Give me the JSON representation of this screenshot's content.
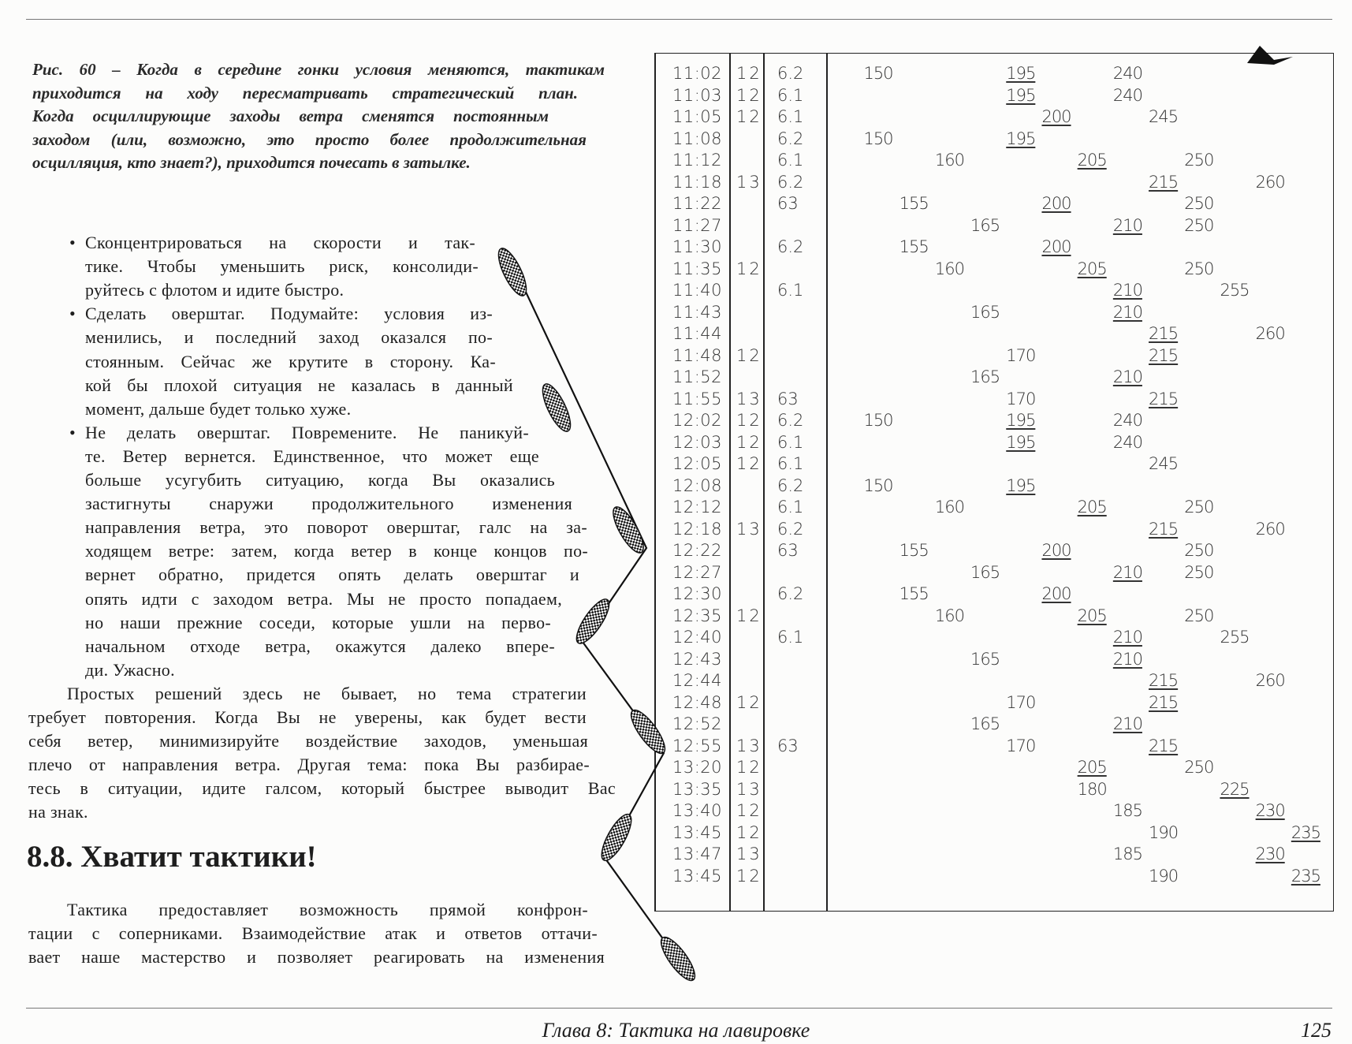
{
  "caption": {
    "lines": [
      "Рис. 60 – Когда в середине гонки условия меняются, тактикам",
      "приходится на ходу пересматривать стратегический план.",
      "Когда осциллирующие заходы ветра сменятся постоянным",
      "заходом (или, возможно, это просто более продолжительная",
      "осцилляция, кто знает?), приходится почесать в затылке."
    ]
  },
  "bullets": [
    {
      "lines": [
        "Сконцентрироваться на скорости и так-",
        "тике. Чтобы уменьшить риск, консолиди-",
        "руйтесь с флотом и идите быстро."
      ]
    },
    {
      "lines": [
        "Сделать оверштаг. Подумайте: условия из-",
        "менились, и последний заход оказался по-",
        "стоянным. Сейчас же крутите в сторону. Ка-",
        "кой бы плохой ситуация не казалась в данный",
        "момент, дальше будет только хуже."
      ]
    },
    {
      "lines": [
        "Не делать оверштаг. Повремените. Не паникуй-",
        "те. Ветер вернется. Единственное, что может еще",
        "больше усугубить ситуацию, когда Вы оказались",
        "застигнуты снаружи продолжительного изменения",
        "направления ветра, это поворот оверштаг, галс на за-",
        "ходящем ветре: затем, когда ветер в конце концов по-",
        "вернет обратно, придется опять делать оверштаг и",
        "опять идти с заходом ветра. Мы не просто попадаем,",
        "но наши прежние соседи, которые ушли на перво-",
        "начальном отходе ветра, окажутся далеко впере-",
        "ди. Ужасно."
      ]
    }
  ],
  "paragraph1": {
    "lines": [
      "Простых решений здесь не бывает, но тема стратегии",
      "требует повторения. Когда Вы не уверены, как будет вести",
      "себя ветер, минимизируйте воздействие заходов, уменьшая",
      "плечо от направления ветра. Другая тема: пока Вы разбирае-",
      "тесь в ситуации, идите галсом, который быстрее выводит Вас",
      "на знак."
    ]
  },
  "heading": "8.8. Хватит тактики!",
  "paragraph2": {
    "lines": [
      "Тактика предоставляет возможность прямой конфрон-",
      "тации с соперниками. Взаимодействие атак и ответов оттачи-",
      "вает наше мастерство и позволяет реагировать на изменения"
    ]
  },
  "table": {
    "rows": [
      {
        "time": "11:02",
        "wind": "12",
        "speed": "6.2",
        "headings": [
          150,
          195,
          240
        ]
      },
      {
        "time": "11:03",
        "wind": "12",
        "speed": "6.1",
        "headings": [
          195,
          240
        ]
      },
      {
        "time": "11:05",
        "wind": "12",
        "speed": "6.1",
        "headings": [
          200,
          245
        ]
      },
      {
        "time": "11:08",
        "wind": "",
        "speed": "6.2",
        "headings": [
          150,
          195
        ]
      },
      {
        "time": "11:12",
        "wind": "",
        "speed": "6.1",
        "headings": [
          160,
          205,
          250
        ]
      },
      {
        "time": "11:18",
        "wind": "13",
        "speed": "6.2",
        "headings": [
          215,
          260
        ]
      },
      {
        "time": "11:22",
        "wind": "",
        "speed": "63",
        "headings": [
          155,
          200,
          250
        ]
      },
      {
        "time": "11:27",
        "wind": "",
        "speed": "",
        "headings": [
          165,
          210,
          250
        ]
      },
      {
        "time": "11:30",
        "wind": "",
        "speed": "6.2",
        "headings": [
          155,
          200
        ]
      },
      {
        "time": "11:35",
        "wind": "12",
        "speed": "",
        "headings": [
          160,
          205,
          250
        ]
      },
      {
        "time": "11:40",
        "wind": "",
        "speed": "6.1",
        "headings": [
          210,
          255
        ]
      },
      {
        "time": "11:43",
        "wind": "",
        "speed": "",
        "headings": [
          165,
          210
        ]
      },
      {
        "time": "11:44",
        "wind": "",
        "speed": "",
        "headings": [
          215,
          260
        ]
      },
      {
        "time": "11:48",
        "wind": "12",
        "speed": "",
        "headings": [
          170,
          215
        ]
      },
      {
        "time": "11:52",
        "wind": "",
        "speed": "",
        "headings": [
          165,
          210
        ]
      },
      {
        "time": "11:55",
        "wind": "13",
        "speed": "63",
        "headings": [
          170,
          215
        ]
      },
      {
        "time": "12:02",
        "wind": "12",
        "speed": "6.2",
        "headings": [
          150,
          195,
          240
        ]
      },
      {
        "time": "12:03",
        "wind": "12",
        "speed": "6.1",
        "headings": [
          195,
          240
        ]
      },
      {
        "time": "12:05",
        "wind": "12",
        "speed": "6.1",
        "headings": [
          245
        ]
      },
      {
        "time": "12:08",
        "wind": "",
        "speed": "6.2",
        "headings": [
          150,
          195
        ]
      },
      {
        "time": "12:12",
        "wind": "",
        "speed": "6.1",
        "headings": [
          160,
          205,
          250
        ]
      },
      {
        "time": "12:18",
        "wind": "13",
        "speed": "6.2",
        "headings": [
          215,
          260
        ]
      },
      {
        "time": "12:22",
        "wind": "",
        "speed": "63",
        "headings": [
          155,
          200,
          250
        ]
      },
      {
        "time": "12:27",
        "wind": "",
        "speed": "",
        "headings": [
          165,
          210,
          250
        ]
      },
      {
        "time": "12:30",
        "wind": "",
        "speed": "6.2",
        "headings": [
          155,
          200
        ]
      },
      {
        "time": "12:35",
        "wind": "12",
        "speed": "",
        "headings": [
          160,
          205,
          250
        ]
      },
      {
        "time": "12:40",
        "wind": "",
        "speed": "6.1",
        "headings": [
          210,
          255
        ]
      },
      {
        "time": "12:43",
        "wind": "",
        "speed": "",
        "headings": [
          165,
          210
        ]
      },
      {
        "time": "12:44",
        "wind": "",
        "speed": "",
        "headings": [
          215,
          260
        ]
      },
      {
        "time": "12:48",
        "wind": "12",
        "speed": "",
        "headings": [
          170,
          215
        ]
      },
      {
        "time": "12:52",
        "wind": "",
        "speed": "",
        "headings": [
          165,
          210
        ]
      },
      {
        "time": "12:55",
        "wind": "13",
        "speed": "63",
        "headings": [
          170,
          215
        ]
      },
      {
        "time": "13:20",
        "wind": "12",
        "speed": "",
        "headings": [
          205,
          250
        ]
      },
      {
        "time": "13:35",
        "wind": "13",
        "speed": "",
        "headings": [
          180,
          225
        ]
      },
      {
        "time": "13:40",
        "wind": "12",
        "speed": "",
        "headings": [
          185,
          230
        ]
      },
      {
        "time": "13:45",
        "wind": "12",
        "speed": "",
        "headings": [
          190,
          235
        ]
      },
      {
        "time": "13:47",
        "wind": "13",
        "speed": "",
        "headings": [
          185,
          230
        ]
      },
      {
        "time": "13:45",
        "wind": "12",
        "speed": "",
        "headings": [
          190,
          235
        ]
      }
    ]
  },
  "footer": {
    "chapter": "Глава 8: Тактика на лавировке",
    "page": "125"
  }
}
